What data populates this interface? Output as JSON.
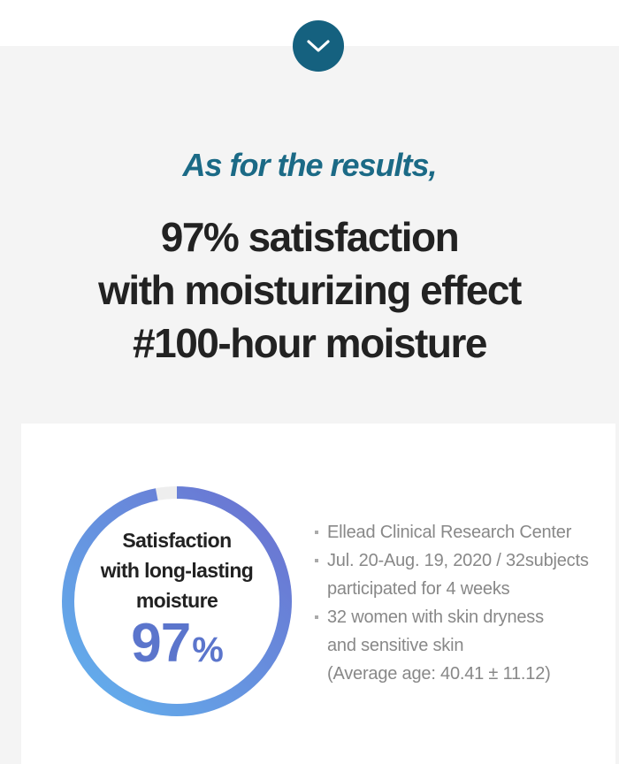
{
  "scroll_button": {
    "icon": "chevron-down-icon"
  },
  "kicker": "As for the results,",
  "headline": {
    "lines": [
      "97% satisfaction",
      "with moisturizing effect",
      "#100-hour moisture"
    ]
  },
  "stat": {
    "label_lines": [
      "Satisfaction",
      "with long-lasting",
      "moisture"
    ],
    "value": "97",
    "unit": "%",
    "percent": 97
  },
  "facts": [
    {
      "lines": [
        "Ellead Clinical Research Center"
      ]
    },
    {
      "lines": [
        "Jul. 20-Aug. 19, 2020 / 32subjects",
        "participated for 4 weeks"
      ]
    },
    {
      "lines": [
        "32 women with skin dryness",
        "and sensitive skin",
        "(Average age: 40.41 ± 11.12)"
      ]
    }
  ],
  "colors": {
    "accent": "#15617f",
    "ring_start": "#62b2ee",
    "ring_end": "#6b6fcf",
    "ring_track": "#eeeeee",
    "stat_value": "#5b75cc"
  }
}
